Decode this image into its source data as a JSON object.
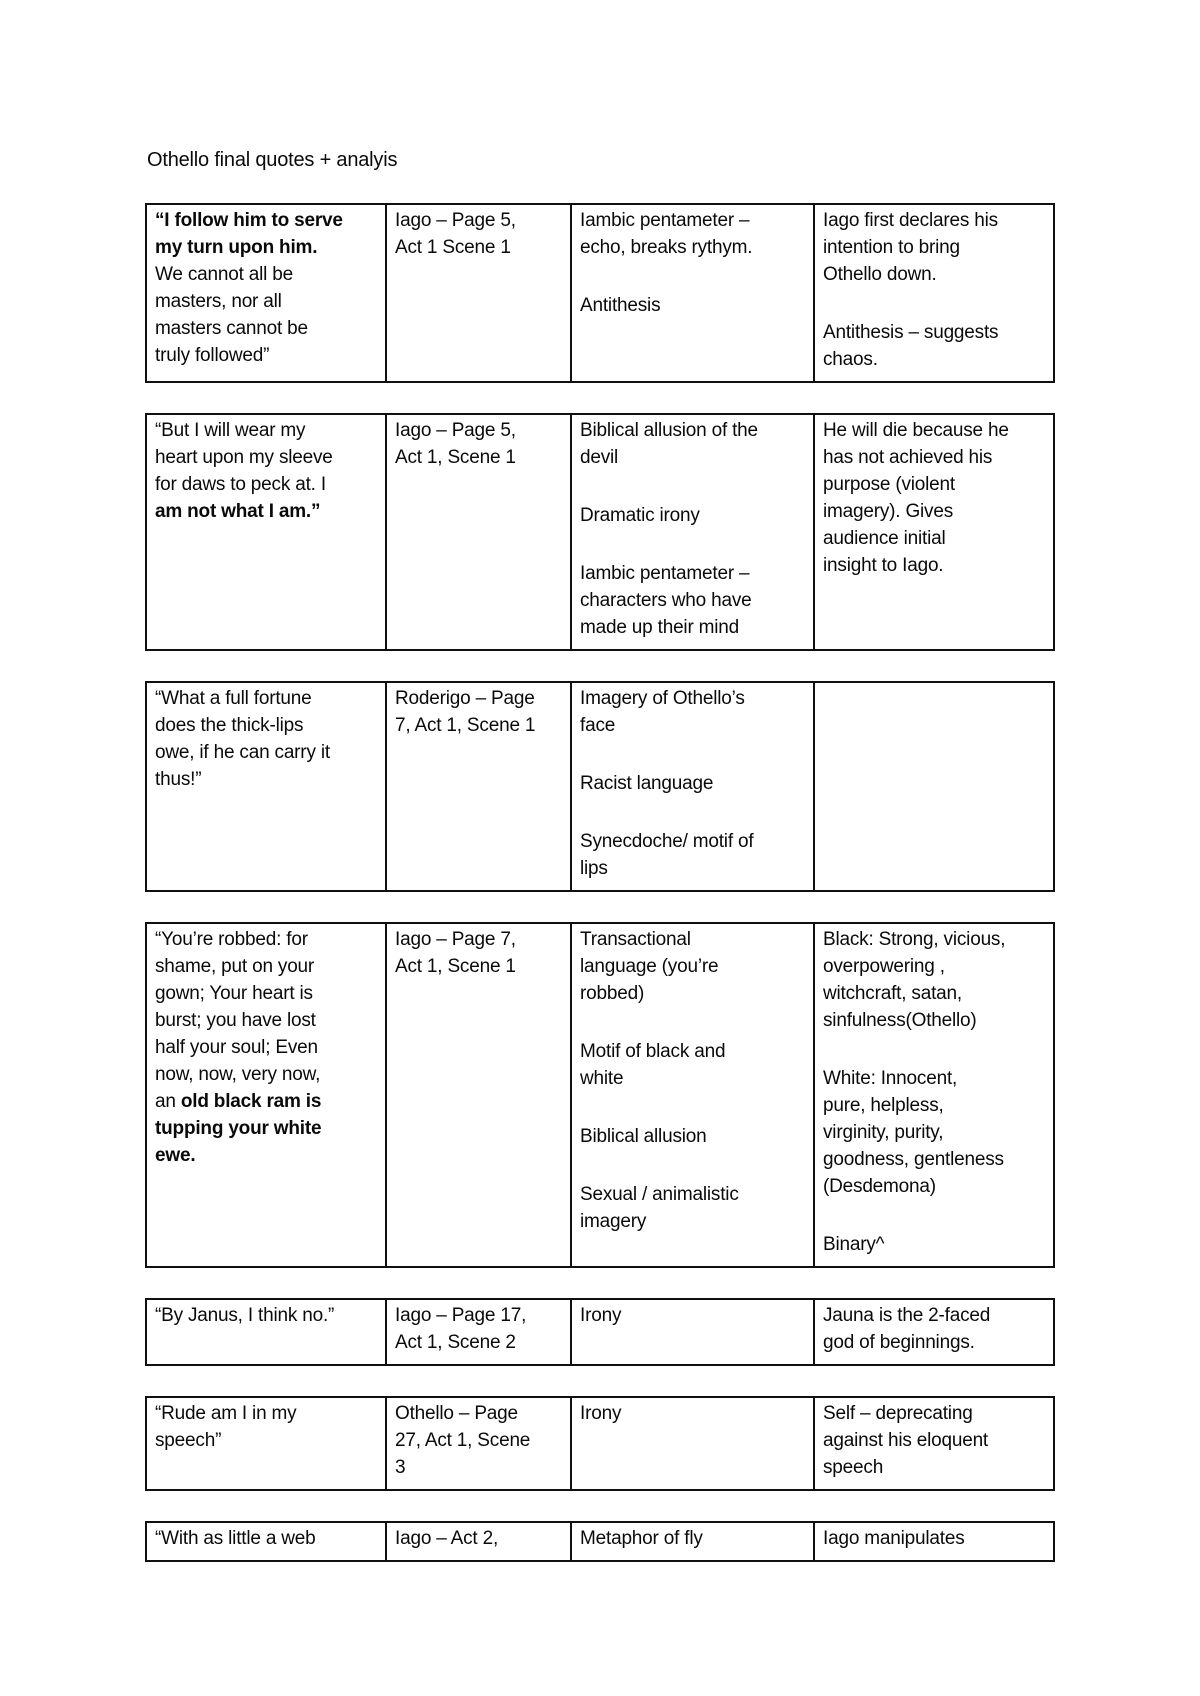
{
  "document": {
    "title": "Othello final quotes + analyis"
  },
  "tables": [
    {
      "cells": [
        {
          "paragraphs": [
            [
              {
                "text": "“I follow him to serve\nmy turn upon him.",
                "bold": true
              },
              {
                "text": "\nWe cannot all be\nmasters, nor all\nmasters cannot be\ntruly followed”"
              }
            ]
          ]
        },
        {
          "paragraphs": [
            [
              {
                "text": "Iago – Page 5,\nAct 1 Scene 1"
              }
            ]
          ]
        },
        {
          "paragraphs": [
            [
              {
                "text": "Iambic pentameter –\necho, breaks rythym."
              }
            ],
            [
              {
                "text": "Antithesis"
              }
            ]
          ]
        },
        {
          "paragraphs": [
            [
              {
                "text": "Iago first declares his\nintention to bring\nOthello down."
              }
            ],
            [
              {
                "text": "Antithesis – suggests\nchaos."
              }
            ]
          ]
        }
      ]
    },
    {
      "cells": [
        {
          "paragraphs": [
            [
              {
                "text": "“But I will wear my\nheart upon my sleeve\nfor daws to peck at. I\n"
              },
              {
                "text": "am not what I am.”",
                "bold": true
              }
            ]
          ]
        },
        {
          "paragraphs": [
            [
              {
                "text": "Iago – Page 5,\nAct 1, Scene 1"
              }
            ]
          ]
        },
        {
          "paragraphs": [
            [
              {
                "text": "Biblical allusion of the\ndevil"
              }
            ],
            [
              {
                "text": "Dramatic irony"
              }
            ],
            [
              {
                "text": "Iambic pentameter –\ncharacters who have\nmade up their mind"
              }
            ]
          ]
        },
        {
          "paragraphs": [
            [
              {
                "text": "He will die because he\nhas not achieved his\npurpose (violent\nimagery). Gives\naudience initial\ninsight to Iago."
              }
            ]
          ]
        }
      ]
    },
    {
      "cells": [
        {
          "paragraphs": [
            [
              {
                "text": "“What a full fortune\ndoes the thick-lips\nowe, if he can carry it\nthus!”"
              }
            ]
          ]
        },
        {
          "paragraphs": [
            [
              {
                "text": "Roderigo – Page\n7, Act 1, Scene 1"
              }
            ]
          ]
        },
        {
          "paragraphs": [
            [
              {
                "text": "Imagery of Othello’s\nface"
              }
            ],
            [
              {
                "text": "Racist language"
              }
            ],
            [
              {
                "text": "Synecdoche/ motif of\nlips"
              }
            ]
          ]
        },
        {
          "paragraphs": []
        }
      ]
    },
    {
      "cells": [
        {
          "paragraphs": [
            [
              {
                "text": "“You’re robbed: for\nshame, put on your\ngown; Your heart is\nburst; you have lost\nhalf your soul; Even\nnow, now, very now,\nan "
              },
              {
                "text": "old black ram is\ntupping your white\newe.",
                "bold": true
              }
            ]
          ]
        },
        {
          "paragraphs": [
            [
              {
                "text": "Iago – Page 7,\nAct 1, Scene 1"
              }
            ]
          ]
        },
        {
          "paragraphs": [
            [
              {
                "text": "Transactional\nlanguage (you’re\nrobbed)"
              }
            ],
            [
              {
                "text": "Motif of black and\nwhite"
              }
            ],
            [
              {
                "text": "Biblical allusion"
              }
            ],
            [
              {
                "text": "Sexual / animalistic\nimagery"
              }
            ]
          ]
        },
        {
          "paragraphs": [
            [
              {
                "text": "Black: Strong, vicious,\noverpowering ,\nwitchcraft, satan,\nsinfulness(Othello)"
              }
            ],
            [
              {
                "text": "White: Innocent,\npure, helpless,\nvirginity, purity,\ngoodness, gentleness\n(Desdemona)"
              }
            ],
            [
              {
                "text": "Binary^"
              }
            ]
          ]
        }
      ]
    },
    {
      "cells": [
        {
          "paragraphs": [
            [
              {
                "text": "“By Janus, I think no.”"
              }
            ]
          ]
        },
        {
          "paragraphs": [
            [
              {
                "text": "Iago – Page 17,\nAct 1, Scene 2"
              }
            ]
          ]
        },
        {
          "paragraphs": [
            [
              {
                "text": "Irony"
              }
            ]
          ]
        },
        {
          "paragraphs": [
            [
              {
                "text": "Jauna is the 2-faced\ngod of beginnings."
              }
            ]
          ]
        }
      ]
    },
    {
      "cells": [
        {
          "paragraphs": [
            [
              {
                "text": "“Rude am I in my\nspeech”"
              }
            ]
          ]
        },
        {
          "paragraphs": [
            [
              {
                "text": "Othello – Page\n27, Act 1, Scene\n3"
              }
            ]
          ]
        },
        {
          "paragraphs": [
            [
              {
                "text": "Irony"
              }
            ]
          ]
        },
        {
          "paragraphs": [
            [
              {
                "text": "Self – deprecating\nagainst his eloquent\nspeech"
              }
            ]
          ]
        }
      ]
    },
    {
      "cells": [
        {
          "paragraphs": [
            [
              {
                "text": "“With as little a web"
              }
            ]
          ]
        },
        {
          "paragraphs": [
            [
              {
                "text": "Iago – Act 2,"
              }
            ]
          ]
        },
        {
          "paragraphs": [
            [
              {
                "text": "Metaphor of fly"
              }
            ]
          ]
        },
        {
          "paragraphs": [
            [
              {
                "text": "Iago manipulates"
              }
            ]
          ]
        }
      ]
    }
  ]
}
